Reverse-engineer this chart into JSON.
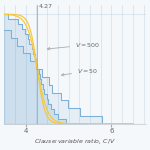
{
  "xlabel": "Clause:variable ratio, $\\mathit{C/V}$",
  "xlim": [
    3.5,
    6.8
  ],
  "ylim": [
    0,
    1.08
  ],
  "vline_x": 4.27,
  "vline_label": "4.27",
  "xticks": [
    4,
    6
  ],
  "yticks": [],
  "V500_label": "$V = 500$",
  "V50_label": "$V = 50$",
  "blue_color": "#7bafd4",
  "yellow_color": "#f5c842",
  "grid_color": "#c8d8e8",
  "background": "#f5f8fa",
  "arrow_color": "#999999",
  "threshold": 4.27
}
